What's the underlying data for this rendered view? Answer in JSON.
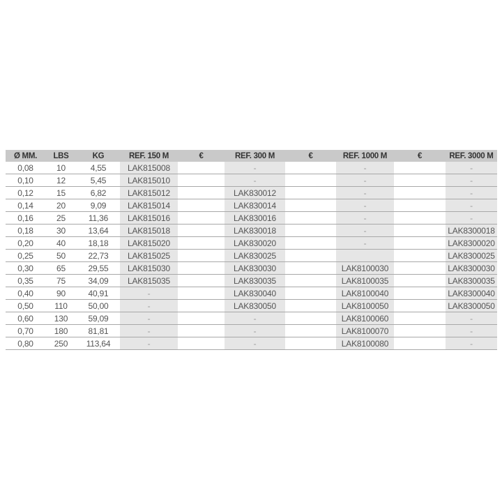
{
  "table": {
    "headers": [
      "Ø MM.",
      "LBS",
      "KG",
      "REF. 150 M",
      "€",
      "REF. 300 M",
      "€",
      "REF. 1000 M",
      "€",
      "REF. 3000 M"
    ],
    "rows": [
      [
        "0,08",
        "10",
        "4,55",
        "LAK815008",
        "",
        "-",
        "",
        "-",
        "",
        "-"
      ],
      [
        "0,10",
        "12",
        "5,45",
        "LAK815010",
        "",
        "-",
        "",
        "-",
        "",
        "-"
      ],
      [
        "0,12",
        "15",
        "6,82",
        "LAK815012",
        "",
        "LAK830012",
        "",
        "-",
        "",
        "-"
      ],
      [
        "0,14",
        "20",
        "9,09",
        "LAK815014",
        "",
        "LAK830014",
        "",
        "-",
        "",
        "-"
      ],
      [
        "0,16",
        "25",
        "11,36",
        "LAK815016",
        "",
        "LAK830016",
        "",
        "-",
        "",
        "-"
      ],
      [
        "0,18",
        "30",
        "13,64",
        "LAK815018",
        "",
        "LAK830018",
        "",
        "-",
        "",
        "LAK8300018"
      ],
      [
        "0,20",
        "40",
        "18,18",
        "LAK815020",
        "",
        "LAK830020",
        "",
        "-",
        "",
        "LAK8300020"
      ],
      [
        "0,25",
        "50",
        "22,73",
        "LAK815025",
        "",
        "LAK830025",
        "",
        "",
        "",
        "LAK8300025"
      ],
      [
        "0,30",
        "65",
        "29,55",
        "LAK815030",
        "",
        "LAK830030",
        "",
        "LAK8100030",
        "",
        "LAK8300030"
      ],
      [
        "0,35",
        "75",
        "34,09",
        "LAK815035",
        "",
        "LAK830035",
        "",
        "LAK8100035",
        "",
        "LAK8300035"
      ],
      [
        "0,40",
        "90",
        "40,91",
        "-",
        "",
        "LAK830040",
        "",
        "LAK8100040",
        "",
        "LAK8300040"
      ],
      [
        "0,50",
        "110",
        "50,00",
        "-",
        "",
        "LAK830050",
        "",
        "LAK8100050",
        "",
        "LAK8300050"
      ],
      [
        "0,60",
        "130",
        "59,09",
        "-",
        "",
        "-",
        "",
        "LAK8100060",
        "",
        "-"
      ],
      [
        "0,70",
        "180",
        "81,81",
        "-",
        "",
        "-",
        "",
        "LAK8100070",
        "",
        "-"
      ],
      [
        "0,80",
        "250",
        "113,64",
        "-",
        "",
        "-",
        "",
        "LAK8100080",
        "",
        "-"
      ]
    ]
  },
  "colors": {
    "header_bg": "#c9c9c9",
    "ref_column_bg": "#e6e6e6"
  }
}
